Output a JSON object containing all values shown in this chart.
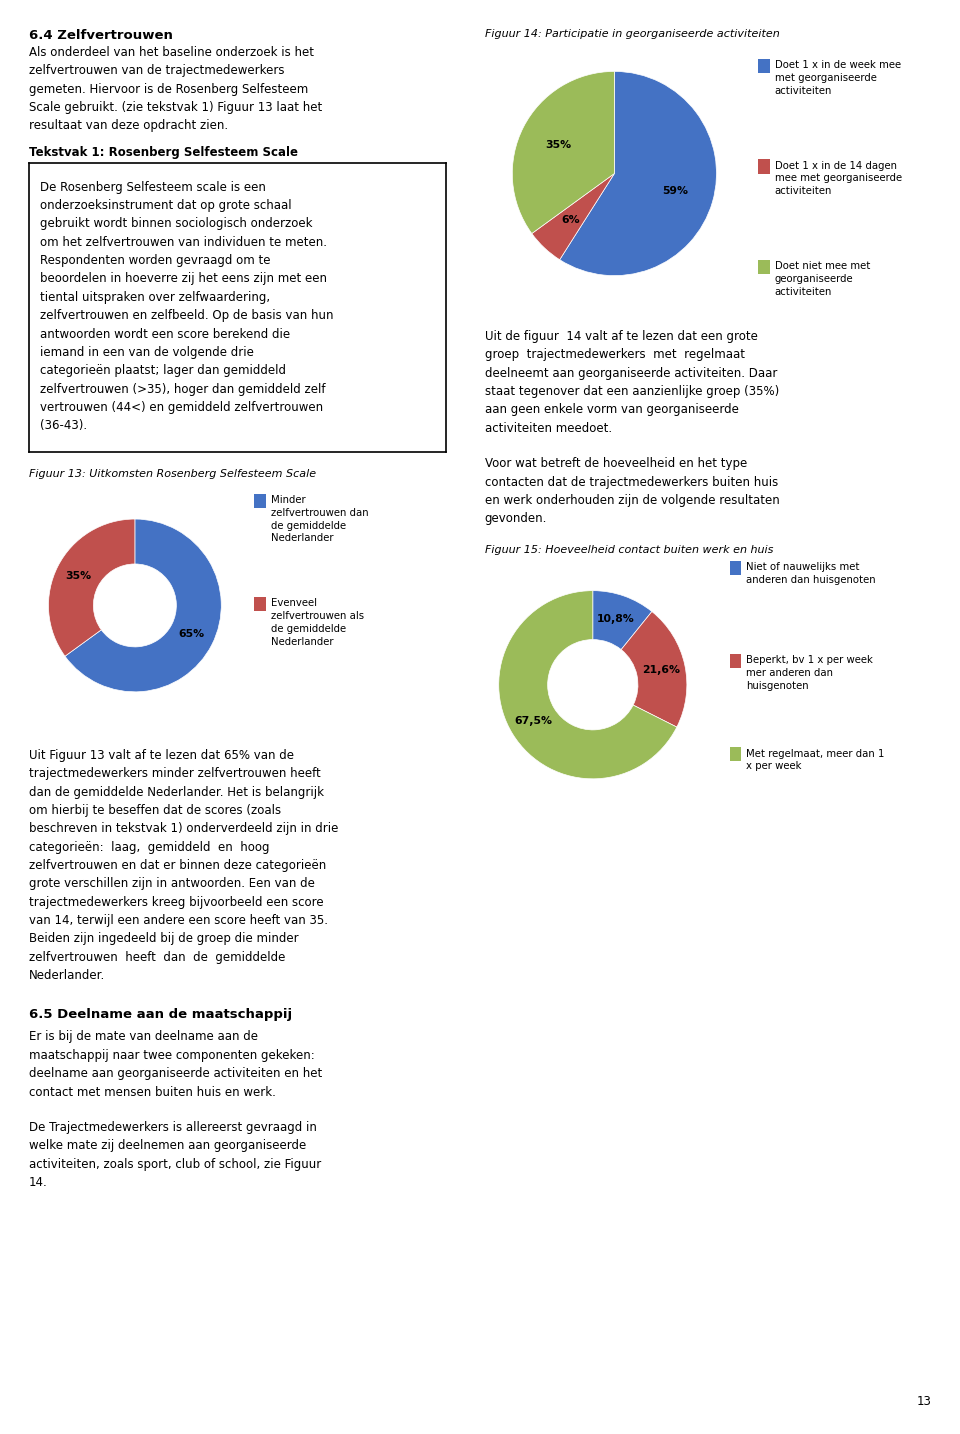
{
  "page_bg": "#ffffff",
  "heading": "6.4 Zelfvertrouwen",
  "para1_lines": [
    "Als onderdeel van het baseline onderzoek is het",
    "zelfvertrouwen van de trajectmedewerkers",
    "gemeten. Hiervoor is de Rosenberg Selfesteem",
    "Scale gebruikt. (zie tekstvak 1) Figuur 13 laat het",
    "resultaat van deze opdracht zien."
  ],
  "tekstvak_title": "Tekstvak 1: Rosenberg Selfesteem Scale",
  "tekstvak_lines": [
    "De Rosenberg Selfesteem scale is een",
    "onderzoeksinstrument dat op grote schaal",
    "gebruikt wordt binnen sociologisch onderzoek",
    "om het zelfvertrouwen van individuen te meten.",
    "Respondenten worden gevraagd om te",
    "beoordelen in hoeverre zij het eens zijn met een",
    "tiental uitspraken over zelfwaardering,",
    "zelfvertrouwen en zelfbeeld. Op de basis van hun",
    "antwoorden wordt een score berekend die",
    "iemand in een van de volgende drie",
    "categorieën plaatst; lager dan gemiddeld",
    "zelfvertrouwen (>35), hoger dan gemiddeld zelf",
    "vertrouwen (44<) en gemiddeld zelfvertrouwen",
    "(36-43)."
  ],
  "fig14_title": "Figuur 14: Participatie in georganiseerde activiteiten",
  "fig14_values": [
    59,
    6,
    35
  ],
  "fig14_colors": [
    "#4472C4",
    "#C0504D",
    "#9BBB59"
  ],
  "fig14_labels": [
    "59%",
    "6%",
    "35%"
  ],
  "fig14_legend": [
    "Doet 1 x in de week mee\nmet georganiseerde\nactiviteiten",
    "Doet 1 x in de 14 dagen\nmee met georganiseerde\nactiviteiten",
    "Doet niet mee met\ngeorganiseerde\nactiviteiten"
  ],
  "fig14_legend_colors": [
    "#4472C4",
    "#C0504D",
    "#9BBB59"
  ],
  "right_para1_lines": [
    "Uit de figuur  14 valt af te lezen dat een grote",
    "groep  trajectmedewerkers  met  regelmaat",
    "deelneemt aan georganiseerde activiteiten. Daar",
    "staat tegenover dat een aanzienlijke groep (35%)",
    "aan geen enkele vorm van georganiseerde",
    "activiteiten meedoet."
  ],
  "right_para2_lines": [
    "Voor wat betreft de hoeveelheid en het type",
    "contacten dat de trajectmedewerkers buiten huis",
    "en werk onderhouden zijn de volgende resultaten",
    "gevonden."
  ],
  "fig13_title": "Figuur 13: Uitkomsten Rosenberg Selfesteem Scale",
  "fig13_values": [
    65,
    35
  ],
  "fig13_colors": [
    "#4472C4",
    "#C0504D"
  ],
  "fig13_labels": [
    "65%",
    "35%"
  ],
  "fig13_legend": [
    "Minder\nzelfvertrouwen dan\nde gemiddelde\nNederlander",
    "Evenveel\nzelfvertrouwen als\nde gemiddelde\nNederlander"
  ],
  "fig13_legend_colors": [
    "#4472C4",
    "#C0504D"
  ],
  "fig15_title": "Figuur 15: Hoeveelheid contact buiten werk en huis",
  "fig15_values": [
    10.8,
    21.6,
    67.5
  ],
  "fig15_colors": [
    "#4472C4",
    "#C0504D",
    "#9BBB59"
  ],
  "fig15_labels": [
    "10,8%",
    "21,6%",
    "67,5%"
  ],
  "fig15_legend": [
    "Niet of nauwelijks met\nanderen dan huisgenoten",
    "Beperkt, bv 1 x per week\nmer anderen dan\nhuisgenoten",
    "Met regelmaat, meer dan 1\nx per week"
  ],
  "fig15_legend_colors": [
    "#4472C4",
    "#C0504D",
    "#9BBB59"
  ],
  "left_para_after13_lines": [
    "Uit Figuur 13 valt af te lezen dat 65% van de",
    "trajectmedewerkers minder zelfvertrouwen heeft",
    "dan de gemiddelde Nederlander. Het is belangrijk",
    "om hierbij te beseffen dat de scores (zoals",
    "beschreven in tekstvak 1) onderverdeeld zijn in drie",
    "categorieën:  laag,  gemiddeld  en  hoog",
    "zelfvertrouwen en dat er binnen deze categorieën",
    "grote verschillen zijn in antwoorden. Een van de",
    "trajectmedewerkers kreeg bijvoorbeeld een score",
    "van 14, terwijl een andere een score heeft van 35.",
    "Beiden zijn ingedeeld bij de groep die minder",
    "zelfvertrouwen  heeft  dan  de  gemiddelde",
    "Nederlander."
  ],
  "heading2": "6.5 Deelname aan de maatschappij",
  "para_65_1_lines": [
    "Er is bij de mate van deelname aan de",
    "maatschappij naar twee componenten gekeken:",
    "deelname aan georganiseerde activiteiten en het",
    "contact met mensen buiten huis en werk."
  ],
  "para_65_2_lines": [
    "De Trajectmedewerkers is allereerst gevraagd in",
    "welke mate zij deelnemen aan georganiseerde",
    "activiteiten, zoals sport, club of school, zie Figuur",
    "14."
  ],
  "page_number": "13"
}
